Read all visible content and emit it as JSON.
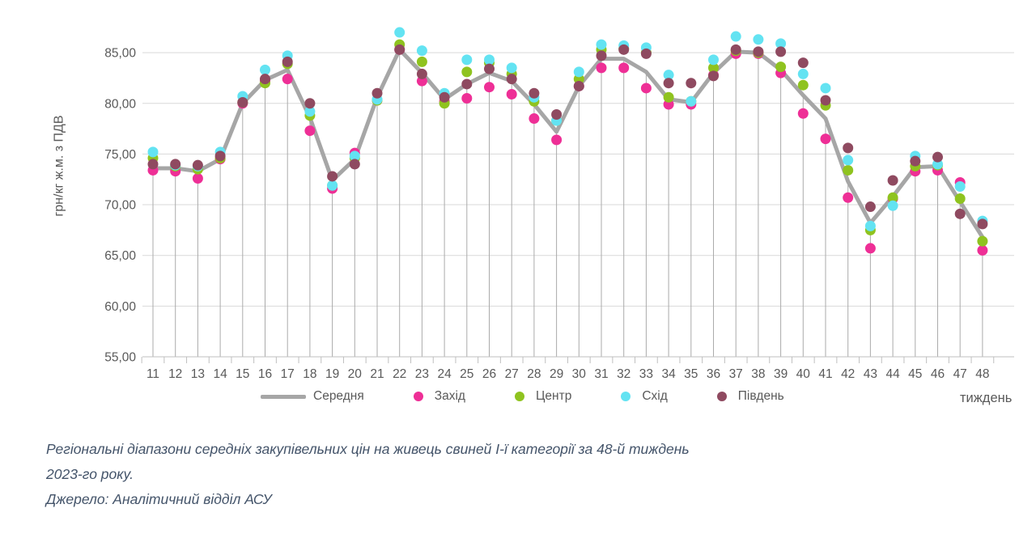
{
  "chart_data": {
    "type": "scatter",
    "title": "",
    "x_axis_title": "тиждень",
    "y_axis_title": "грн/кг ж.м. з ПДВ",
    "categories": [
      11,
      12,
      13,
      14,
      15,
      16,
      17,
      18,
      19,
      20,
      21,
      22,
      23,
      24,
      25,
      26,
      27,
      28,
      29,
      30,
      31,
      32,
      33,
      34,
      35,
      36,
      37,
      38,
      39,
      40,
      41,
      42,
      43,
      44,
      45,
      46,
      47,
      48
    ],
    "ylim": [
      55,
      87.5
    ],
    "y_tick_step": 5,
    "y_tick_labels": [
      "55,00",
      "60,00",
      "65,00",
      "70,00",
      "75,00",
      "80,00",
      "85,00"
    ],
    "grid": "horizontal gridlines plus vertical droplines under each point",
    "legend_position": "bottom",
    "series": [
      {
        "name": "Середня",
        "style": "line",
        "color": "#a6a6a6",
        "values": [
          73.6,
          73.6,
          73.3,
          74.5,
          80.0,
          82.3,
          83.3,
          78.6,
          72.4,
          74.5,
          80.6,
          85.3,
          83.0,
          80.4,
          81.9,
          83.0,
          82.2,
          79.9,
          77.2,
          81.7,
          84.4,
          84.4,
          83.1,
          80.4,
          80.1,
          83.0,
          85.1,
          85.0,
          83.3,
          80.8,
          78.5,
          72.3,
          68.2,
          70.8,
          73.7,
          73.8,
          70.3,
          66.8
        ]
      },
      {
        "name": "Захід",
        "style": "dots",
        "color": "#ee2f96",
        "values": [
          73.4,
          73.3,
          72.6,
          74.5,
          80.0,
          82.2,
          82.4,
          77.3,
          71.6,
          75.1,
          80.3,
          85.3,
          82.2,
          80.2,
          80.5,
          81.6,
          80.9,
          78.5,
          76.4,
          81.7,
          83.5,
          83.5,
          81.5,
          79.9,
          79.9,
          82.8,
          84.9,
          84.9,
          83.0,
          79.0,
          76.5,
          70.7,
          65.7,
          70.6,
          73.3,
          73.4,
          72.2,
          65.5
        ]
      },
      {
        "name": "Центр",
        "style": "dots",
        "color": "#8fc31f",
        "values": [
          74.6,
          73.8,
          73.5,
          74.6,
          80.1,
          82.0,
          83.9,
          78.8,
          71.9,
          74.6,
          80.3,
          85.8,
          84.1,
          80.0,
          83.1,
          84.0,
          82.9,
          80.2,
          78.3,
          82.4,
          85.3,
          85.4,
          85.0,
          80.6,
          80.2,
          83.5,
          85.2,
          85.0,
          83.6,
          81.8,
          79.8,
          73.4,
          67.5,
          70.7,
          73.8,
          73.9,
          70.6,
          66.4
        ]
      },
      {
        "name": "Схід",
        "style": "dots",
        "color": "#63e3f2",
        "values": [
          75.2,
          73.9,
          73.8,
          75.2,
          80.7,
          83.3,
          84.7,
          79.2,
          71.9,
          74.8,
          80.4,
          87.0,
          85.2,
          81.0,
          84.3,
          84.3,
          83.5,
          80.6,
          78.3,
          83.1,
          85.8,
          85.7,
          85.5,
          82.8,
          80.2,
          84.3,
          86.6,
          86.3,
          85.9,
          82.9,
          81.5,
          74.4,
          67.9,
          69.9,
          74.8,
          74.0,
          71.8,
          68.4
        ]
      },
      {
        "name": "Південь",
        "style": "dots",
        "color": "#8f4a60",
        "values": [
          74.0,
          74.0,
          73.9,
          74.8,
          80.1,
          82.4,
          84.1,
          80.0,
          72.8,
          74.0,
          81.0,
          85.3,
          82.9,
          80.6,
          81.9,
          83.4,
          82.4,
          81.0,
          78.9,
          81.7,
          84.7,
          85.3,
          84.9,
          82.0,
          82.0,
          82.7,
          85.3,
          85.1,
          85.1,
          84.0,
          80.3,
          75.6,
          69.8,
          72.4,
          74.3,
          74.7,
          69.1,
          68.1
        ]
      }
    ],
    "colors": {
      "gridline": "#d9d9d9",
      "dropline": "#ababab",
      "axis": "#bfbfbf",
      "tick_label": "#595959"
    }
  },
  "caption": {
    "line1": "Регіональні діапазони середніх закупівельних цін на живець свиней І-ї категорії за 48-й тиждень",
    "line2": "2023-го року.",
    "line3": "Джерело: Аналітичний відділ АСУ"
  }
}
